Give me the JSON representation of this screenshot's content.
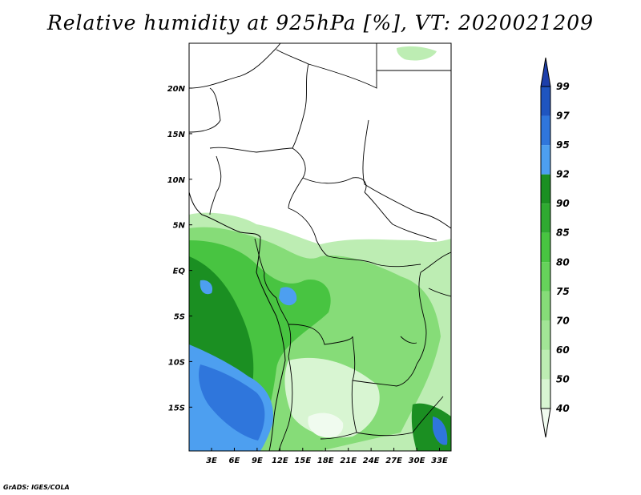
{
  "title": "Relative humidity at 925hPa [%], VT: 2020021209",
  "credit": "GrADS: IGES/COLA",
  "map": {
    "lon_labels": [
      "3E",
      "6E",
      "9E",
      "12E",
      "15E",
      "18E",
      "21E",
      "24E",
      "27E",
      "30E",
      "33E"
    ],
    "lat_labels": [
      "20N",
      "15N",
      "10N",
      "5N",
      "EQ",
      "5S",
      "10S",
      "15S"
    ]
  },
  "colorbar": {
    "levels": [
      "40",
      "50",
      "60",
      "70",
      "75",
      "80",
      "85",
      "90",
      "92",
      "95",
      "97",
      "99"
    ],
    "colors": [
      "#f0fbef",
      "#d8f5d2",
      "#bdedb3",
      "#a2e596",
      "#86dc78",
      "#66d25b",
      "#48c441",
      "#2faa31",
      "#1b8f22",
      "#4d9ff0",
      "#2f76dc",
      "#1f55c0",
      "#1d3faa"
    ]
  }
}
